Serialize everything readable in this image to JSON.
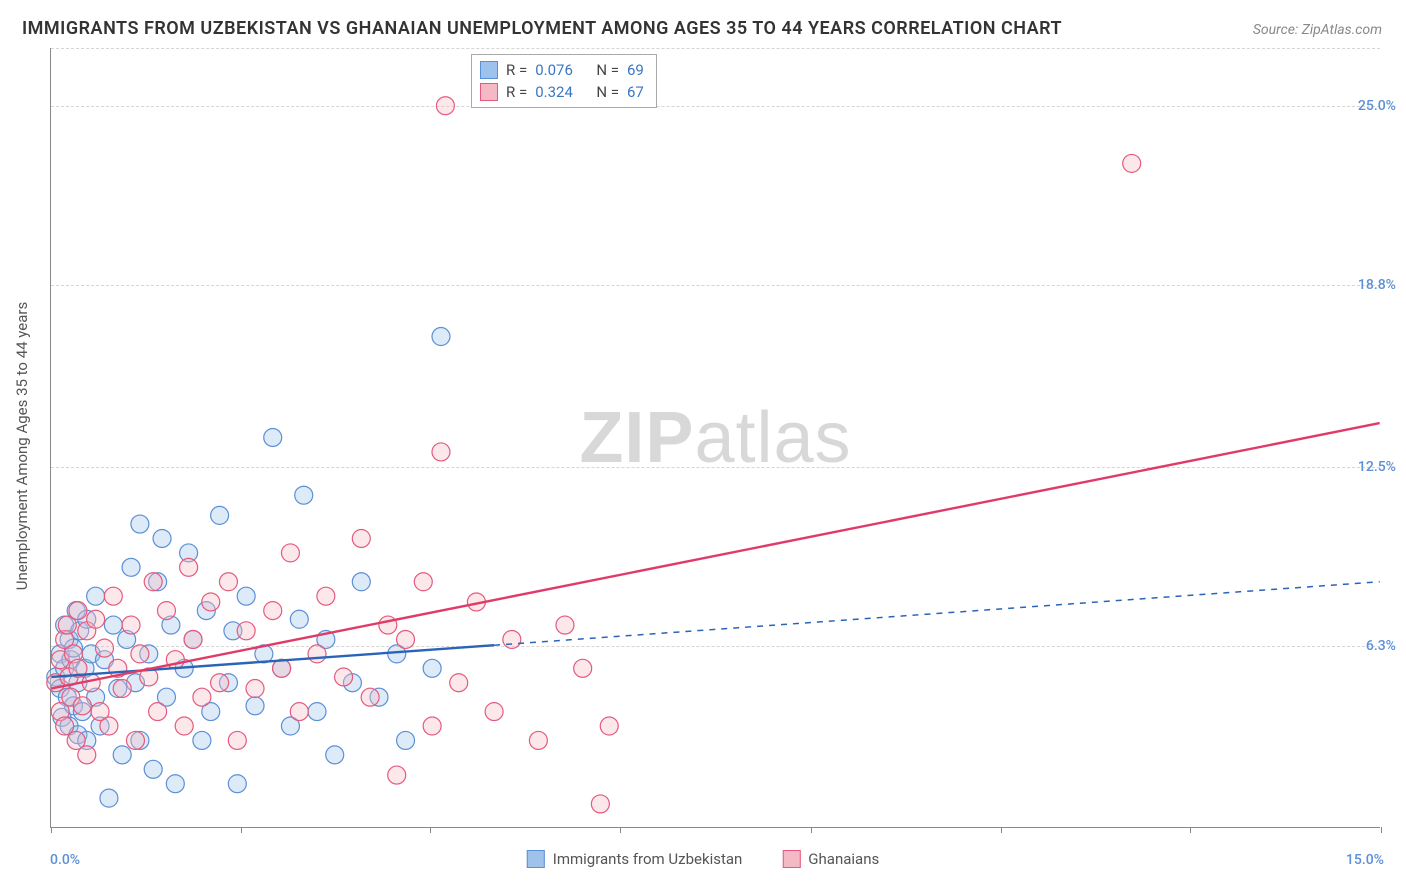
{
  "title": "IMMIGRANTS FROM UZBEKISTAN VS GHANAIAN UNEMPLOYMENT AMONG AGES 35 TO 44 YEARS CORRELATION CHART",
  "source_label": "Source:",
  "source_value": "ZipAtlas.com",
  "watermark_a": "ZIP",
  "watermark_b": "atlas",
  "chart": {
    "type": "scatter",
    "ylabel": "Unemployment Among Ages 35 to 44 years",
    "xlim": [
      0.0,
      15.0
    ],
    "ylim": [
      0.0,
      27.0
    ],
    "x_ticks_pct": [
      0,
      2.14,
      4.28,
      6.42,
      8.57,
      10.71,
      12.85,
      15.0
    ],
    "xtick_left": "0.0%",
    "xtick_right": "15.0%",
    "y_ticks": [
      {
        "v": 6.3,
        "label": "6.3%"
      },
      {
        "v": 12.5,
        "label": "12.5%"
      },
      {
        "v": 18.8,
        "label": "18.8%"
      },
      {
        "v": 25.0,
        "label": "25.0%"
      }
    ],
    "grid_color": "#d5d5d5",
    "background_color": "#ffffff",
    "axis_color": "#888888",
    "tick_label_color": "#5b8fd6",
    "marker_radius": 9,
    "marker_fill_opacity": 0.35,
    "marker_stroke_width": 1.2,
    "trend_line_width": 2.4,
    "trend_dash_solid_cutoff_x": 5.0,
    "series": [
      {
        "id": "uzbekistan",
        "label": "Immigrants from Uzbekistan",
        "color_fill": "#9ec3ea",
        "color_stroke": "#5b8fd6",
        "trend_color": "#2a64b8",
        "R": "0.076",
        "N": "69",
        "trend_start": {
          "x": 0.0,
          "y": 5.2
        },
        "trend_end": {
          "x": 15.0,
          "y": 8.5
        },
        "points": [
          {
            "x": 0.05,
            "y": 5.2
          },
          {
            "x": 0.1,
            "y": 4.8
          },
          {
            "x": 0.1,
            "y": 6.0
          },
          {
            "x": 0.12,
            "y": 3.8
          },
          {
            "x": 0.15,
            "y": 5.5
          },
          {
            "x": 0.15,
            "y": 7.0
          },
          {
            "x": 0.18,
            "y": 4.5
          },
          {
            "x": 0.2,
            "y": 6.5
          },
          {
            "x": 0.2,
            "y": 3.5
          },
          {
            "x": 0.22,
            "y": 5.8
          },
          {
            "x": 0.25,
            "y": 6.2
          },
          {
            "x": 0.25,
            "y": 4.2
          },
          {
            "x": 0.28,
            "y": 7.5
          },
          {
            "x": 0.3,
            "y": 5.0
          },
          {
            "x": 0.3,
            "y": 3.2
          },
          {
            "x": 0.32,
            "y": 6.8
          },
          {
            "x": 0.35,
            "y": 4.0
          },
          {
            "x": 0.38,
            "y": 5.5
          },
          {
            "x": 0.4,
            "y": 7.2
          },
          {
            "x": 0.4,
            "y": 3.0
          },
          {
            "x": 0.45,
            "y": 6.0
          },
          {
            "x": 0.5,
            "y": 4.5
          },
          {
            "x": 0.5,
            "y": 8.0
          },
          {
            "x": 0.55,
            "y": 3.5
          },
          {
            "x": 0.6,
            "y": 5.8
          },
          {
            "x": 0.65,
            "y": 1.0
          },
          {
            "x": 0.7,
            "y": 7.0
          },
          {
            "x": 0.75,
            "y": 4.8
          },
          {
            "x": 0.8,
            "y": 2.5
          },
          {
            "x": 0.85,
            "y": 6.5
          },
          {
            "x": 0.9,
            "y": 9.0
          },
          {
            "x": 0.95,
            "y": 5.0
          },
          {
            "x": 1.0,
            "y": 3.0
          },
          {
            "x": 1.0,
            "y": 10.5
          },
          {
            "x": 1.1,
            "y": 6.0
          },
          {
            "x": 1.15,
            "y": 2.0
          },
          {
            "x": 1.2,
            "y": 8.5
          },
          {
            "x": 1.25,
            "y": 10.0
          },
          {
            "x": 1.3,
            "y": 4.5
          },
          {
            "x": 1.35,
            "y": 7.0
          },
          {
            "x": 1.4,
            "y": 1.5
          },
          {
            "x": 1.5,
            "y": 5.5
          },
          {
            "x": 1.55,
            "y": 9.5
          },
          {
            "x": 1.6,
            "y": 6.5
          },
          {
            "x": 1.7,
            "y": 3.0
          },
          {
            "x": 1.75,
            "y": 7.5
          },
          {
            "x": 1.8,
            "y": 4.0
          },
          {
            "x": 1.9,
            "y": 10.8
          },
          {
            "x": 2.0,
            "y": 5.0
          },
          {
            "x": 2.05,
            "y": 6.8
          },
          {
            "x": 2.1,
            "y": 1.5
          },
          {
            "x": 2.2,
            "y": 8.0
          },
          {
            "x": 2.3,
            "y": 4.2
          },
          {
            "x": 2.4,
            "y": 6.0
          },
          {
            "x": 2.5,
            "y": 13.5
          },
          {
            "x": 2.6,
            "y": 5.5
          },
          {
            "x": 2.7,
            "y": 3.5
          },
          {
            "x": 2.8,
            "y": 7.2
          },
          {
            "x": 2.85,
            "y": 11.5
          },
          {
            "x": 3.0,
            "y": 4.0
          },
          {
            "x": 3.1,
            "y": 6.5
          },
          {
            "x": 3.2,
            "y": 2.5
          },
          {
            "x": 3.4,
            "y": 5.0
          },
          {
            "x": 3.5,
            "y": 8.5
          },
          {
            "x": 3.7,
            "y": 4.5
          },
          {
            "x": 3.9,
            "y": 6.0
          },
          {
            "x": 4.0,
            "y": 3.0
          },
          {
            "x": 4.3,
            "y": 5.5
          },
          {
            "x": 4.4,
            "y": 17.0
          }
        ]
      },
      {
        "id": "ghanaians",
        "label": "Ghanaians",
        "color_fill": "#f5b9c6",
        "color_stroke": "#e55a7e",
        "trend_color": "#e03b68",
        "R": "0.324",
        "N": "67",
        "trend_start": {
          "x": 0.0,
          "y": 4.8
        },
        "trend_end": {
          "x": 15.0,
          "y": 14.0
        },
        "points": [
          {
            "x": 0.05,
            "y": 5.0
          },
          {
            "x": 0.1,
            "y": 5.8
          },
          {
            "x": 0.1,
            "y": 4.0
          },
          {
            "x": 0.15,
            "y": 6.5
          },
          {
            "x": 0.15,
            "y": 3.5
          },
          {
            "x": 0.18,
            "y": 7.0
          },
          {
            "x": 0.2,
            "y": 5.2
          },
          {
            "x": 0.22,
            "y": 4.5
          },
          {
            "x": 0.25,
            "y": 6.0
          },
          {
            "x": 0.28,
            "y": 3.0
          },
          {
            "x": 0.3,
            "y": 7.5
          },
          {
            "x": 0.3,
            "y": 5.5
          },
          {
            "x": 0.35,
            "y": 4.2
          },
          {
            "x": 0.4,
            "y": 6.8
          },
          {
            "x": 0.4,
            "y": 2.5
          },
          {
            "x": 0.45,
            "y": 5.0
          },
          {
            "x": 0.5,
            "y": 7.2
          },
          {
            "x": 0.55,
            "y": 4.0
          },
          {
            "x": 0.6,
            "y": 6.2
          },
          {
            "x": 0.65,
            "y": 3.5
          },
          {
            "x": 0.7,
            "y": 8.0
          },
          {
            "x": 0.75,
            "y": 5.5
          },
          {
            "x": 0.8,
            "y": 4.8
          },
          {
            "x": 0.9,
            "y": 7.0
          },
          {
            "x": 0.95,
            "y": 3.0
          },
          {
            "x": 1.0,
            "y": 6.0
          },
          {
            "x": 1.1,
            "y": 5.2
          },
          {
            "x": 1.15,
            "y": 8.5
          },
          {
            "x": 1.2,
            "y": 4.0
          },
          {
            "x": 1.3,
            "y": 7.5
          },
          {
            "x": 1.4,
            "y": 5.8
          },
          {
            "x": 1.5,
            "y": 3.5
          },
          {
            "x": 1.55,
            "y": 9.0
          },
          {
            "x": 1.6,
            "y": 6.5
          },
          {
            "x": 1.7,
            "y": 4.5
          },
          {
            "x": 1.8,
            "y": 7.8
          },
          {
            "x": 1.9,
            "y": 5.0
          },
          {
            "x": 2.0,
            "y": 8.5
          },
          {
            "x": 2.1,
            "y": 3.0
          },
          {
            "x": 2.2,
            "y": 6.8
          },
          {
            "x": 2.3,
            "y": 4.8
          },
          {
            "x": 2.5,
            "y": 7.5
          },
          {
            "x": 2.6,
            "y": 5.5
          },
          {
            "x": 2.7,
            "y": 9.5
          },
          {
            "x": 2.8,
            "y": 4.0
          },
          {
            "x": 3.0,
            "y": 6.0
          },
          {
            "x": 3.1,
            "y": 8.0
          },
          {
            "x": 3.3,
            "y": 5.2
          },
          {
            "x": 3.5,
            "y": 10.0
          },
          {
            "x": 3.6,
            "y": 4.5
          },
          {
            "x": 3.8,
            "y": 7.0
          },
          {
            "x": 3.9,
            "y": 1.8
          },
          {
            "x": 4.0,
            "y": 6.5
          },
          {
            "x": 4.2,
            "y": 8.5
          },
          {
            "x": 4.3,
            "y": 3.5
          },
          {
            "x": 4.4,
            "y": 13.0
          },
          {
            "x": 4.45,
            "y": 25.0
          },
          {
            "x": 4.6,
            "y": 5.0
          },
          {
            "x": 4.8,
            "y": 7.8
          },
          {
            "x": 5.0,
            "y": 4.0
          },
          {
            "x": 5.2,
            "y": 6.5
          },
          {
            "x": 5.5,
            "y": 3.0
          },
          {
            "x": 5.8,
            "y": 7.0
          },
          {
            "x": 6.0,
            "y": 5.5
          },
          {
            "x": 6.2,
            "y": 0.8
          },
          {
            "x": 6.3,
            "y": 3.5
          },
          {
            "x": 12.2,
            "y": 23.0
          }
        ]
      }
    ],
    "correlation_box": {
      "R_label": "R =",
      "N_label": "N ="
    },
    "legend_swatch_size": 18
  }
}
